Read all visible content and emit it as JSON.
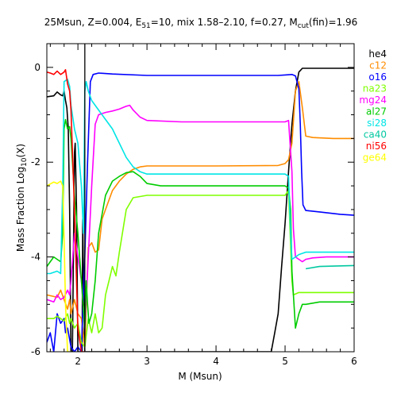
{
  "chart_data": {
    "type": "line",
    "title_parts": {
      "t1": "25Msun, Z=0.004, E",
      "t1_sub": "51",
      "t2": "=10, mix 1.58–2.10, f=0.27, M",
      "t2_sub": "cut",
      "t3": "(fin)=1.96"
    },
    "xlabel": "M (Msun)",
    "ylabel_main": "Mass Fraction Log",
    "ylabel_sub": "10",
    "ylabel_end": "(X)",
    "xlim": [
      1.55,
      6.0
    ],
    "ylim": [
      -6,
      0.5
    ],
    "x_ticks": [
      2,
      3,
      4,
      5,
      6
    ],
    "y_ticks": [
      0,
      -2,
      -4,
      -6
    ],
    "vline_x": 2.1,
    "series": [
      {
        "name": "he4",
        "color": "#000000",
        "points": [
          [
            1.55,
            -0.62
          ],
          [
            1.65,
            -0.6
          ],
          [
            1.7,
            -0.52
          ],
          [
            1.75,
            -0.58
          ],
          [
            1.78,
            -0.6
          ],
          [
            1.8,
            -0.5
          ],
          [
            1.82,
            -0.7
          ],
          [
            1.84,
            -0.85
          ],
          [
            1.86,
            -1.3
          ],
          [
            1.88,
            -3.0
          ],
          [
            1.9,
            -6.0
          ],
          [
            1.92,
            -6.0
          ],
          [
            1.95,
            -1.8
          ],
          [
            1.96,
            -1.6
          ],
          [
            1.98,
            -3.0
          ],
          [
            2.0,
            -6.0
          ],
          [
            2.06,
            -6.0
          ],
          [
            2.07,
            -3.2
          ],
          [
            2.08,
            -4.5
          ],
          [
            2.1,
            -6.0
          ],
          [
            4.8,
            -6.0
          ],
          [
            4.85,
            -5.6
          ],
          [
            4.9,
            -5.2
          ],
          [
            4.95,
            -4.2
          ],
          [
            5.0,
            -3.3
          ],
          [
            5.05,
            -2.2
          ],
          [
            5.1,
            -1.2
          ],
          [
            5.15,
            -0.5
          ],
          [
            5.2,
            -0.1
          ],
          [
            5.25,
            -0.02
          ],
          [
            5.4,
            -0.02
          ],
          [
            5.6,
            -0.02
          ],
          [
            6.0,
            -0.02
          ]
        ]
      },
      {
        "name": "c12",
        "color": "#ff8c00",
        "points": [
          [
            1.55,
            -4.8
          ],
          [
            1.7,
            -4.85
          ],
          [
            1.75,
            -4.7
          ],
          [
            1.8,
            -4.9
          ],
          [
            1.85,
            -5.1
          ],
          [
            1.88,
            -4.9
          ],
          [
            1.9,
            -5.2
          ],
          [
            1.95,
            -4.9
          ],
          [
            2.0,
            -5.2
          ],
          [
            2.05,
            -5.3
          ],
          [
            2.1,
            -5.9
          ],
          [
            2.15,
            -3.8
          ],
          [
            2.2,
            -3.7
          ],
          [
            2.25,
            -3.9
          ],
          [
            2.3,
            -3.85
          ],
          [
            2.35,
            -3.2
          ],
          [
            2.4,
            -3.0
          ],
          [
            2.5,
            -2.6
          ],
          [
            2.6,
            -2.4
          ],
          [
            2.7,
            -2.25
          ],
          [
            2.8,
            -2.15
          ],
          [
            2.9,
            -2.1
          ],
          [
            3.0,
            -2.08
          ],
          [
            4.0,
            -2.08
          ],
          [
            4.9,
            -2.07
          ],
          [
            5.0,
            -2.03
          ],
          [
            5.05,
            -1.95
          ],
          [
            5.1,
            -1.6
          ],
          [
            5.15,
            -0.5
          ],
          [
            5.2,
            -0.3
          ],
          [
            5.25,
            -0.85
          ],
          [
            5.3,
            -1.45
          ],
          [
            5.4,
            -1.48
          ],
          [
            5.7,
            -1.5
          ],
          [
            6.0,
            -1.5
          ]
        ]
      },
      {
        "name": "o16",
        "color": "#0000ff",
        "points": [
          [
            1.55,
            -5.8
          ],
          [
            1.6,
            -5.6
          ],
          [
            1.65,
            -6.0
          ],
          [
            1.7,
            -5.2
          ],
          [
            1.75,
            -5.4
          ],
          [
            1.8,
            -5.3
          ],
          [
            1.82,
            -5.6
          ],
          [
            1.85,
            -5.5
          ],
          [
            1.9,
            -5.9
          ],
          [
            1.95,
            -6.0
          ],
          [
            2.0,
            -5.9
          ],
          [
            2.05,
            -6.0
          ],
          [
            2.1,
            -4.0
          ],
          [
            2.14,
            -2.0
          ],
          [
            2.18,
            -0.3
          ],
          [
            2.22,
            -0.15
          ],
          [
            2.3,
            -0.12
          ],
          [
            2.5,
            -0.14
          ],
          [
            3.0,
            -0.17
          ],
          [
            4.0,
            -0.17
          ],
          [
            4.9,
            -0.17
          ],
          [
            5.0,
            -0.16
          ],
          [
            5.1,
            -0.15
          ],
          [
            5.15,
            -0.18
          ],
          [
            5.2,
            -0.45
          ],
          [
            5.22,
            -1.2
          ],
          [
            5.24,
            -2.2
          ],
          [
            5.26,
            -2.9
          ],
          [
            5.3,
            -3.02
          ],
          [
            5.5,
            -3.05
          ],
          [
            5.8,
            -3.1
          ],
          [
            6.0,
            -3.12
          ]
        ]
      },
      {
        "name": "na23",
        "color": "#7fff00",
        "points": [
          [
            1.55,
            -5.3
          ],
          [
            1.65,
            -5.3
          ],
          [
            1.7,
            -5.25
          ],
          [
            1.8,
            -5.35
          ],
          [
            1.85,
            -5.2
          ],
          [
            1.88,
            -5.4
          ],
          [
            1.9,
            -5.3
          ],
          [
            1.95,
            -5.5
          ],
          [
            2.0,
            -5.4
          ],
          [
            2.05,
            -5.8
          ],
          [
            2.1,
            -5.9
          ],
          [
            2.15,
            -5.3
          ],
          [
            2.2,
            -5.6
          ],
          [
            2.25,
            -5.2
          ],
          [
            2.3,
            -5.6
          ],
          [
            2.35,
            -5.5
          ],
          [
            2.4,
            -4.8
          ],
          [
            2.45,
            -4.5
          ],
          [
            2.5,
            -4.2
          ],
          [
            2.55,
            -4.4
          ],
          [
            2.6,
            -3.9
          ],
          [
            2.7,
            -3.0
          ],
          [
            2.8,
            -2.75
          ],
          [
            3.0,
            -2.7
          ],
          [
            4.0,
            -2.7
          ],
          [
            5.0,
            -2.7
          ],
          [
            5.05,
            -2.6
          ],
          [
            5.1,
            -4.5
          ],
          [
            5.12,
            -4.8
          ],
          [
            5.2,
            -4.75
          ],
          [
            5.3,
            -4.75
          ],
          [
            5.6,
            -4.75
          ],
          [
            6.0,
            -4.75
          ]
        ]
      },
      {
        "name": "mg24",
        "color": "#ff00ff",
        "points": [
          [
            1.55,
            -4.9
          ],
          [
            1.65,
            -4.95
          ],
          [
            1.7,
            -4.8
          ],
          [
            1.75,
            -4.9
          ],
          [
            1.8,
            -4.85
          ],
          [
            1.85,
            -4.7
          ],
          [
            1.88,
            -4.8
          ],
          [
            1.9,
            -4.5
          ],
          [
            1.95,
            -3.5
          ],
          [
            2.0,
            -4.0
          ],
          [
            2.05,
            -4.5
          ],
          [
            2.1,
            -5.5
          ],
          [
            2.15,
            -4.0
          ],
          [
            2.2,
            -2.5
          ],
          [
            2.25,
            -1.2
          ],
          [
            2.3,
            -1.0
          ],
          [
            2.4,
            -0.95
          ],
          [
            2.5,
            -0.92
          ],
          [
            2.6,
            -0.88
          ],
          [
            2.7,
            -0.82
          ],
          [
            2.75,
            -0.8
          ],
          [
            2.8,
            -0.9
          ],
          [
            2.9,
            -1.05
          ],
          [
            3.0,
            -1.12
          ],
          [
            3.5,
            -1.15
          ],
          [
            4.0,
            -1.15
          ],
          [
            5.0,
            -1.15
          ],
          [
            5.05,
            -1.12
          ],
          [
            5.1,
            -2.2
          ],
          [
            5.12,
            -3.4
          ],
          [
            5.15,
            -4.0
          ],
          [
            5.2,
            -4.05
          ],
          [
            5.25,
            -4.1
          ],
          [
            5.3,
            -4.05
          ],
          [
            5.4,
            -4.02
          ],
          [
            5.6,
            -4.0
          ],
          [
            6.0,
            -4.0
          ]
        ]
      },
      {
        "name": "al27",
        "color": "#00cc00",
        "points": [
          [
            1.55,
            -4.2
          ],
          [
            1.6,
            -4.1
          ],
          [
            1.65,
            -4.0
          ],
          [
            1.7,
            -4.05
          ],
          [
            1.75,
            -4.1
          ],
          [
            1.78,
            -3.5
          ],
          [
            1.8,
            -1.3
          ],
          [
            1.82,
            -1.1
          ],
          [
            1.85,
            -1.3
          ],
          [
            1.88,
            -1.25
          ],
          [
            1.9,
            -1.5
          ],
          [
            1.95,
            -2.7
          ],
          [
            2.0,
            -3.5
          ],
          [
            2.05,
            -4.5
          ],
          [
            2.1,
            -5.5
          ],
          [
            2.12,
            -4.5
          ],
          [
            2.14,
            -5.0
          ],
          [
            2.16,
            -5.4
          ],
          [
            2.2,
            -5.2
          ],
          [
            2.25,
            -4.5
          ],
          [
            2.3,
            -3.5
          ],
          [
            2.4,
            -2.7
          ],
          [
            2.5,
            -2.4
          ],
          [
            2.6,
            -2.3
          ],
          [
            2.7,
            -2.22
          ],
          [
            2.8,
            -2.2
          ],
          [
            2.9,
            -2.3
          ],
          [
            3.0,
            -2.45
          ],
          [
            3.2,
            -2.5
          ],
          [
            4.0,
            -2.5
          ],
          [
            5.0,
            -2.5
          ],
          [
            5.05,
            -2.55
          ],
          [
            5.08,
            -3.0
          ],
          [
            5.1,
            -4.3
          ],
          [
            5.15,
            -5.5
          ],
          [
            5.2,
            -5.2
          ],
          [
            5.25,
            -5.0
          ],
          [
            5.3,
            -5.0
          ],
          [
            5.5,
            -4.95
          ],
          [
            6.0,
            -4.95
          ]
        ]
      },
      {
        "name": "si28",
        "color": "#00e5e5",
        "points": [
          [
            1.55,
            -4.35
          ],
          [
            1.6,
            -4.35
          ],
          [
            1.7,
            -4.3
          ],
          [
            1.75,
            -4.35
          ],
          [
            1.78,
            -2.5
          ],
          [
            1.8,
            -0.3
          ],
          [
            1.85,
            -0.25
          ],
          [
            1.88,
            -0.4
          ],
          [
            1.9,
            -0.8
          ],
          [
            1.95,
            -1.3
          ],
          [
            2.0,
            -1.6
          ],
          [
            2.05,
            -2.5
          ],
          [
            2.08,
            -3.5
          ],
          [
            2.1,
            -0.5
          ],
          [
            2.12,
            -0.3
          ],
          [
            2.15,
            -0.5
          ],
          [
            2.2,
            -0.7
          ],
          [
            2.3,
            -0.9
          ],
          [
            2.4,
            -1.1
          ],
          [
            2.5,
            -1.3
          ],
          [
            2.6,
            -1.6
          ],
          [
            2.7,
            -1.9
          ],
          [
            2.8,
            -2.1
          ],
          [
            2.9,
            -2.2
          ],
          [
            3.0,
            -2.25
          ],
          [
            4.0,
            -2.25
          ],
          [
            5.0,
            -2.25
          ],
          [
            5.05,
            -2.3
          ],
          [
            5.08,
            -3.5
          ],
          [
            5.1,
            -4.05
          ],
          [
            5.15,
            -4.0
          ],
          [
            5.2,
            -3.95
          ],
          [
            5.3,
            -3.9
          ],
          [
            6.0,
            -3.9
          ]
        ]
      },
      {
        "name": "ca40",
        "color": "#00c8a0",
        "points": [
          [
            5.3,
            -4.25
          ],
          [
            5.5,
            -4.2
          ],
          [
            6.0,
            -4.18
          ]
        ]
      },
      {
        "name": "ni56",
        "color": "#ff0000",
        "points": [
          [
            1.55,
            -0.1
          ],
          [
            1.6,
            -0.12
          ],
          [
            1.65,
            -0.15
          ],
          [
            1.7,
            -0.08
          ],
          [
            1.75,
            -0.15
          ],
          [
            1.8,
            -0.1
          ],
          [
            1.82,
            -0.05
          ],
          [
            1.85,
            -0.35
          ],
          [
            1.88,
            -0.5
          ],
          [
            1.9,
            -0.9
          ],
          [
            1.95,
            -3.0
          ],
          [
            2.0,
            -5.5
          ],
          [
            2.05,
            -6.0
          ],
          [
            2.1,
            -6.0
          ]
        ]
      },
      {
        "name": "ge64",
        "color": "#ffff00",
        "points": [
          [
            1.55,
            -2.5
          ],
          [
            1.65,
            -2.42
          ],
          [
            1.7,
            -2.45
          ],
          [
            1.75,
            -2.4
          ],
          [
            1.78,
            -2.5
          ],
          [
            1.8,
            -3.6
          ],
          [
            1.82,
            -5.0
          ],
          [
            1.85,
            -6.0
          ],
          [
            1.9,
            -6.0
          ]
        ]
      }
    ]
  }
}
